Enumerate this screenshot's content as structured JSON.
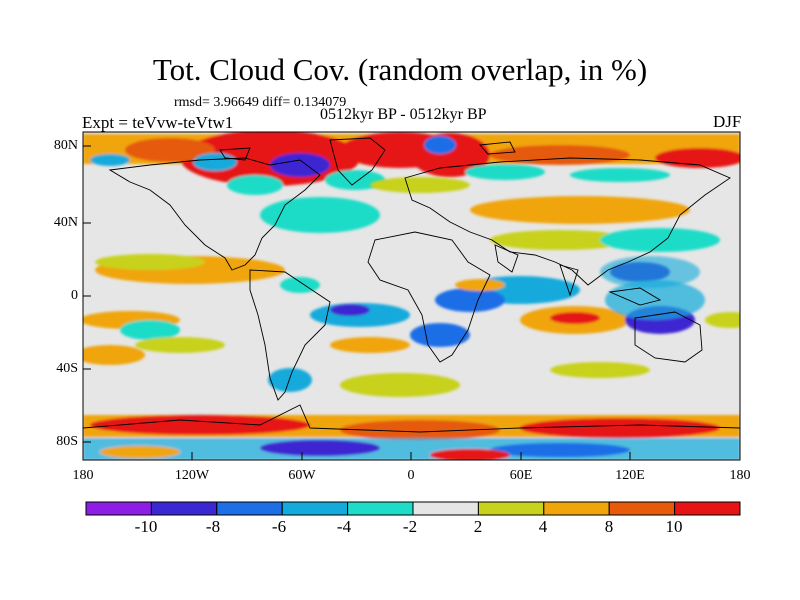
{
  "title": "Tot. Cloud Cov. (random overlap, in %)",
  "stats": "rmsd= 3.96649 diff= 0.134079",
  "experiment": "Expt = teVvw-teVtw1",
  "period": "0512kyr BP - 0512kyr BP",
  "season": "DJF",
  "x_ticks": [
    "180",
    "120W",
    "60W",
    "0",
    "60E",
    "120E",
    "180"
  ],
  "y_ticks": [
    "80N",
    "40N",
    "0",
    "40S",
    "80S"
  ],
  "colorbar": {
    "labels": [
      "-10",
      "-8",
      "-6",
      "-4",
      "-2",
      "2",
      "4",
      "8",
      "10"
    ],
    "colors": [
      "#8c1ee6",
      "#3c28d2",
      "#1e6ee6",
      "#14aadc",
      "#1edcc8",
      "#e6e6e6",
      "#c8d21e",
      "#f0a50a",
      "#e65a0a",
      "#e61414"
    ]
  }
}
